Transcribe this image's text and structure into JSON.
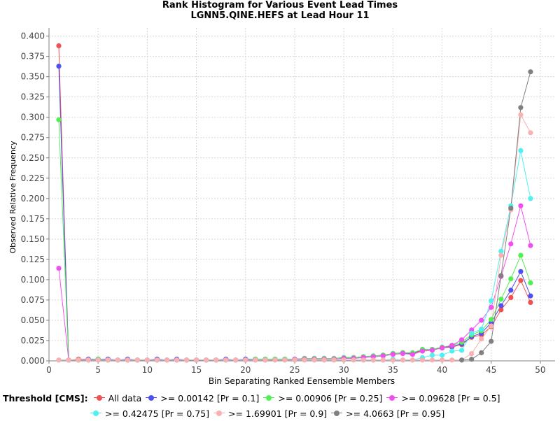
{
  "chart_data": {
    "type": "line",
    "title": "Rank Histogram for Various Event Lead Times",
    "subtitle": "LGNN5.QINE.HEFS at Lead Hour 11",
    "xlabel": "Bin Separating Ranked Eensemble Members",
    "ylabel": "Observed Relative Frequency",
    "xlim": [
      0,
      51.5
    ],
    "ylim": [
      0,
      0.41
    ],
    "x_ticks": [
      0,
      5,
      10,
      15,
      20,
      25,
      30,
      35,
      40,
      45,
      50
    ],
    "y_ticks": [
      0.0,
      0.025,
      0.05,
      0.075,
      0.1,
      0.125,
      0.15,
      0.175,
      0.2,
      0.225,
      0.25,
      0.275,
      0.3,
      0.325,
      0.35,
      0.375,
      0.4
    ],
    "y_tick_labels": [
      "0.000",
      "0.025",
      "0.050",
      "0.075",
      "0.100",
      "0.125",
      "0.150",
      "0.175",
      "0.200",
      "0.225",
      "0.250",
      "0.275",
      "0.300",
      "0.325",
      "0.350",
      "0.375",
      "0.400"
    ],
    "grid": true,
    "legend_title": "Threshold [CMS]:",
    "legend_position": "bottom",
    "series": [
      {
        "name": "All data",
        "color": "#f05050",
        "points": [
          [
            1,
            0.388
          ],
          [
            2,
            0.001
          ],
          [
            3,
            0.002
          ],
          [
            4,
            0.002
          ],
          [
            5,
            0.002
          ],
          [
            6,
            0.002
          ],
          [
            7,
            0.001
          ],
          [
            8,
            0.002
          ],
          [
            9,
            0.001
          ],
          [
            10,
            0.001
          ],
          [
            11,
            0.002
          ],
          [
            12,
            0.001
          ],
          [
            13,
            0.002
          ],
          [
            14,
            0.001
          ],
          [
            15,
            0.001
          ],
          [
            16,
            0.001
          ],
          [
            17,
            0.001
          ],
          [
            18,
            0.002
          ],
          [
            19,
            0.001
          ],
          [
            20,
            0.002
          ],
          [
            21,
            0.002
          ],
          [
            22,
            0.002
          ],
          [
            23,
            0.002
          ],
          [
            24,
            0.002
          ],
          [
            25,
            0.002
          ],
          [
            26,
            0.003
          ],
          [
            27,
            0.003
          ],
          [
            28,
            0.003
          ],
          [
            29,
            0.003
          ],
          [
            30,
            0.004
          ],
          [
            31,
            0.004
          ],
          [
            32,
            0.005
          ],
          [
            33,
            0.006
          ],
          [
            34,
            0.007
          ],
          [
            35,
            0.009
          ],
          [
            36,
            0.01
          ],
          [
            37,
            0.009
          ],
          [
            38,
            0.013
          ],
          [
            39,
            0.014
          ],
          [
            40,
            0.016
          ],
          [
            41,
            0.017
          ],
          [
            42,
            0.02
          ],
          [
            43,
            0.029
          ],
          [
            44,
            0.032
          ],
          [
            45,
            0.042
          ],
          [
            46,
            0.063
          ],
          [
            47,
            0.078
          ],
          [
            48,
            0.099
          ],
          [
            49,
            0.072
          ]
        ]
      },
      {
        "name": ">= 0.00142 [Pr = 0.1]",
        "color": "#5050f0",
        "points": [
          [
            1,
            0.363
          ],
          [
            2,
            0.001
          ],
          [
            3,
            0.001
          ],
          [
            4,
            0.002
          ],
          [
            5,
            0.002
          ],
          [
            6,
            0.002
          ],
          [
            7,
            0.001
          ],
          [
            8,
            0.002
          ],
          [
            9,
            0.001
          ],
          [
            10,
            0.001
          ],
          [
            11,
            0.002
          ],
          [
            12,
            0.001
          ],
          [
            13,
            0.002
          ],
          [
            14,
            0.001
          ],
          [
            15,
            0.001
          ],
          [
            16,
            0.001
          ],
          [
            17,
            0.001
          ],
          [
            18,
            0.002
          ],
          [
            19,
            0.001
          ],
          [
            20,
            0.002
          ],
          [
            21,
            0.002
          ],
          [
            22,
            0.002
          ],
          [
            23,
            0.002
          ],
          [
            24,
            0.002
          ],
          [
            25,
            0.002
          ],
          [
            26,
            0.003
          ],
          [
            27,
            0.003
          ],
          [
            28,
            0.003
          ],
          [
            29,
            0.003
          ],
          [
            30,
            0.004
          ],
          [
            31,
            0.004
          ],
          [
            32,
            0.005
          ],
          [
            33,
            0.006
          ],
          [
            34,
            0.007
          ],
          [
            35,
            0.009
          ],
          [
            36,
            0.01
          ],
          [
            37,
            0.009
          ],
          [
            38,
            0.014
          ],
          [
            39,
            0.014
          ],
          [
            40,
            0.016
          ],
          [
            41,
            0.018
          ],
          [
            42,
            0.021
          ],
          [
            43,
            0.03
          ],
          [
            44,
            0.034
          ],
          [
            45,
            0.047
          ],
          [
            46,
            0.068
          ],
          [
            47,
            0.087
          ],
          [
            48,
            0.11
          ],
          [
            49,
            0.08
          ]
        ]
      },
      {
        "name": ">= 0.00906 [Pr = 0.25]",
        "color": "#50f050",
        "points": [
          [
            1,
            0.297
          ],
          [
            2,
            0.001
          ],
          [
            3,
            0.001
          ],
          [
            4,
            0.001
          ],
          [
            5,
            0.002
          ],
          [
            6,
            0.001
          ],
          [
            7,
            0.001
          ],
          [
            8,
            0.001
          ],
          [
            9,
            0.001
          ],
          [
            10,
            0.001
          ],
          [
            11,
            0.001
          ],
          [
            12,
            0.001
          ],
          [
            13,
            0.001
          ],
          [
            14,
            0.001
          ],
          [
            15,
            0.001
          ],
          [
            16,
            0.001
          ],
          [
            17,
            0.001
          ],
          [
            18,
            0.001
          ],
          [
            19,
            0.001
          ],
          [
            20,
            0.001
          ],
          [
            21,
            0.002
          ],
          [
            22,
            0.002
          ],
          [
            23,
            0.002
          ],
          [
            24,
            0.002
          ],
          [
            25,
            0.002
          ],
          [
            26,
            0.003
          ],
          [
            27,
            0.003
          ],
          [
            28,
            0.003
          ],
          [
            29,
            0.003
          ],
          [
            30,
            0.004
          ],
          [
            31,
            0.004
          ],
          [
            32,
            0.005
          ],
          [
            33,
            0.006
          ],
          [
            34,
            0.007
          ],
          [
            35,
            0.009
          ],
          [
            36,
            0.01
          ],
          [
            37,
            0.01
          ],
          [
            38,
            0.014
          ],
          [
            39,
            0.014
          ],
          [
            40,
            0.017
          ],
          [
            41,
            0.019
          ],
          [
            42,
            0.023
          ],
          [
            43,
            0.032
          ],
          [
            44,
            0.037
          ],
          [
            45,
            0.051
          ],
          [
            46,
            0.076
          ],
          [
            47,
            0.101
          ],
          [
            48,
            0.13
          ],
          [
            49,
            0.096
          ]
        ]
      },
      {
        "name": ">= 0.09628 [Pr = 0.5]",
        "color": "#f050f0",
        "points": [
          [
            1,
            0.114
          ],
          [
            2,
            0.001
          ],
          [
            3,
            0.001
          ],
          [
            4,
            0.001
          ],
          [
            5,
            0.001
          ],
          [
            6,
            0.001
          ],
          [
            7,
            0.001
          ],
          [
            8,
            0.001
          ],
          [
            9,
            0.001
          ],
          [
            10,
            0.001
          ],
          [
            11,
            0.001
          ],
          [
            12,
            0.001
          ],
          [
            13,
            0.001
          ],
          [
            14,
            0.001
          ],
          [
            15,
            0.001
          ],
          [
            16,
            0.001
          ],
          [
            17,
            0.001
          ],
          [
            18,
            0.001
          ],
          [
            19,
            0.001
          ],
          [
            20,
            0.001
          ],
          [
            21,
            0.001
          ],
          [
            22,
            0.001
          ],
          [
            23,
            0.001
          ],
          [
            24,
            0.001
          ],
          [
            25,
            0.002
          ],
          [
            26,
            0.002
          ],
          [
            27,
            0.002
          ],
          [
            28,
            0.002
          ],
          [
            29,
            0.002
          ],
          [
            30,
            0.003
          ],
          [
            31,
            0.003
          ],
          [
            32,
            0.004
          ],
          [
            33,
            0.005
          ],
          [
            34,
            0.006
          ],
          [
            35,
            0.008
          ],
          [
            36,
            0.009
          ],
          [
            37,
            0.008
          ],
          [
            38,
            0.012
          ],
          [
            39,
            0.013
          ],
          [
            40,
            0.016
          ],
          [
            41,
            0.019
          ],
          [
            42,
            0.026
          ],
          [
            43,
            0.038
          ],
          [
            44,
            0.05
          ],
          [
            45,
            0.066
          ],
          [
            46,
            0.104
          ],
          [
            47,
            0.144
          ],
          [
            48,
            0.191
          ],
          [
            49,
            0.142
          ]
        ]
      },
      {
        "name": ">= 0.42475 [Pr = 0.75]",
        "color": "#50f0f0",
        "points": [
          [
            1,
            0.001
          ],
          [
            2,
            0.001
          ],
          [
            3,
            0.001
          ],
          [
            4,
            0.001
          ],
          [
            5,
            0.001
          ],
          [
            6,
            0.001
          ],
          [
            7,
            0.001
          ],
          [
            8,
            0.001
          ],
          [
            9,
            0.001
          ],
          [
            10,
            0.001
          ],
          [
            11,
            0.001
          ],
          [
            12,
            0.001
          ],
          [
            13,
            0.001
          ],
          [
            14,
            0.001
          ],
          [
            15,
            0.001
          ],
          [
            16,
            0.001
          ],
          [
            17,
            0.001
          ],
          [
            18,
            0.001
          ],
          [
            19,
            0.001
          ],
          [
            20,
            0.001
          ],
          [
            21,
            0.001
          ],
          [
            22,
            0.001
          ],
          [
            23,
            0.001
          ],
          [
            24,
            0.001
          ],
          [
            25,
            0.001
          ],
          [
            26,
            0.001
          ],
          [
            27,
            0.001
          ],
          [
            28,
            0.001
          ],
          [
            29,
            0.001
          ],
          [
            30,
            0.001
          ],
          [
            31,
            0.001
          ],
          [
            32,
            0.001
          ],
          [
            33,
            0.001
          ],
          [
            34,
            0.001
          ],
          [
            35,
            0.002
          ],
          [
            36,
            0.001
          ],
          [
            37,
            0.001
          ],
          [
            38,
            0.004
          ],
          [
            39,
            0.007
          ],
          [
            40,
            0.007
          ],
          [
            41,
            0.012
          ],
          [
            42,
            0.013
          ],
          [
            43,
            0.034
          ],
          [
            44,
            0.039
          ],
          [
            45,
            0.074
          ],
          [
            46,
            0.135
          ],
          [
            47,
            0.191
          ],
          [
            48,
            0.259
          ],
          [
            49,
            0.2
          ]
        ]
      },
      {
        "name": ">= 1.69901 [Pr = 0.9]",
        "color": "#f8b0b0",
        "points": [
          [
            1,
            0.001
          ],
          [
            2,
            0.001
          ],
          [
            3,
            0.001
          ],
          [
            4,
            0.001
          ],
          [
            5,
            0.001
          ],
          [
            6,
            0.001
          ],
          [
            7,
            0.001
          ],
          [
            8,
            0.001
          ],
          [
            9,
            0.001
          ],
          [
            10,
            0.001
          ],
          [
            11,
            0.001
          ],
          [
            12,
            0.001
          ],
          [
            13,
            0.001
          ],
          [
            14,
            0.001
          ],
          [
            15,
            0.001
          ],
          [
            16,
            0.001
          ],
          [
            17,
            0.001
          ],
          [
            18,
            0.001
          ],
          [
            19,
            0.001
          ],
          [
            20,
            0.001
          ],
          [
            21,
            0.001
          ],
          [
            22,
            0.001
          ],
          [
            23,
            0.001
          ],
          [
            24,
            0.001
          ],
          [
            25,
            0.001
          ],
          [
            26,
            0.001
          ],
          [
            27,
            0.001
          ],
          [
            28,
            0.001
          ],
          [
            29,
            0.001
          ],
          [
            30,
            0.001
          ],
          [
            31,
            0.001
          ],
          [
            32,
            0.001
          ],
          [
            33,
            0.001
          ],
          [
            34,
            0.001
          ],
          [
            35,
            0.001
          ],
          [
            36,
            0.001
          ],
          [
            37,
            0.001
          ],
          [
            38,
            0.001
          ],
          [
            39,
            0.001
          ],
          [
            40,
            0.001
          ],
          [
            41,
            0.001
          ],
          [
            42,
            0.001
          ],
          [
            43,
            0.009
          ],
          [
            44,
            0.027
          ],
          [
            45,
            0.043
          ],
          [
            46,
            0.13
          ],
          [
            47,
            0.186
          ],
          [
            48,
            0.303
          ],
          [
            49,
            0.281
          ]
        ]
      },
      {
        "name": ">= 4.0663 [Pr = 0.95]",
        "color": "#808080",
        "points": [
          [
            42,
            0.001
          ],
          [
            43,
            0.002
          ],
          [
            44,
            0.01
          ],
          [
            45,
            0.024
          ],
          [
            46,
            0.105
          ],
          [
            47,
            0.188
          ],
          [
            48,
            0.312
          ],
          [
            49,
            0.356
          ]
        ]
      }
    ]
  }
}
